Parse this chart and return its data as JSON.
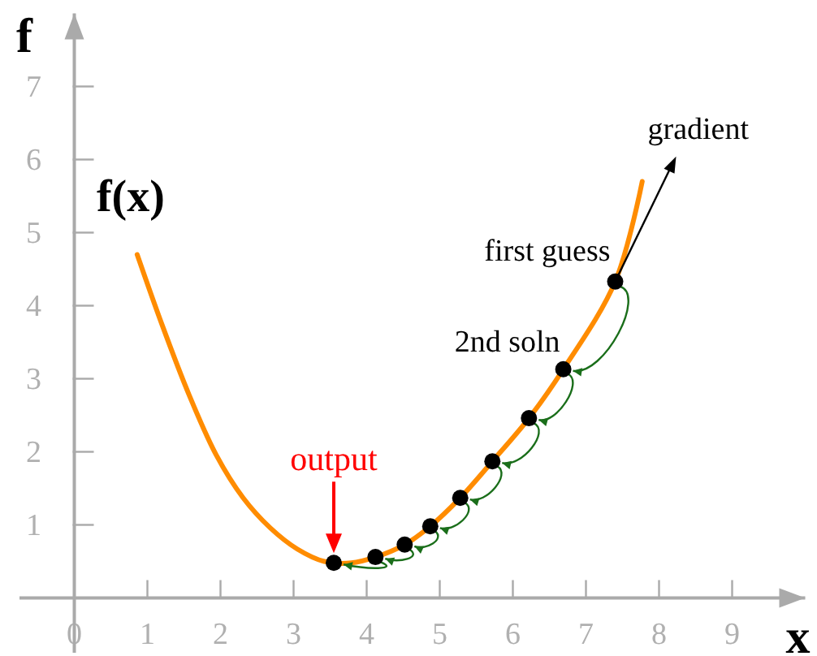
{
  "chart_data": {
    "type": "line",
    "xlabel": "x",
    "ylabel": "f",
    "xlim": [
      -0.75,
      10
    ],
    "ylim": [
      -0.75,
      8
    ],
    "xticks": [
      {
        "value": 0,
        "label": "0"
      },
      1,
      2,
      3,
      4,
      5,
      6,
      7,
      8,
      9
    ],
    "yticks": [
      1,
      2,
      3,
      4,
      5,
      6,
      7
    ],
    "grid": false,
    "series": [
      {
        "name": "f(x)",
        "color": "#ff8c00",
        "marker": "none",
        "x": [
          0.86,
          1.2,
          1.57,
          1.94,
          2.31,
          2.68,
          3.05,
          3.42,
          3.79,
          4.12,
          4.52,
          4.87,
          5.28,
          5.72,
          6.22,
          6.69,
          7.4,
          7.77
        ],
        "values": [
          4.7,
          3.74,
          2.78,
          1.96,
          1.37,
          0.96,
          0.67,
          0.5,
          0.48,
          0.56,
          0.73,
          0.98,
          1.37,
          1.87,
          2.46,
          3.13,
          4.33,
          5.7
        ]
      },
      {
        "type": "scatter",
        "color": "#000000",
        "marker": "circle",
        "x": [
          7.4,
          6.69,
          6.22,
          5.72,
          5.28,
          4.87,
          4.52,
          4.12,
          3.55
        ],
        "values": [
          4.33,
          3.13,
          2.46,
          1.87,
          1.37,
          0.98,
          0.73,
          0.56,
          0.48
        ]
      }
    ],
    "annotations": [
      {
        "text": "first guess",
        "x": 7.4,
        "y": 4.33
      },
      {
        "text": "2nd soln",
        "x": 6.69,
        "y": 3.13
      },
      {
        "text": "output",
        "x": 3.55,
        "y": 0.48
      },
      {
        "text": "gradient",
        "x": 7.4,
        "y": 4.33
      }
    ]
  }
}
